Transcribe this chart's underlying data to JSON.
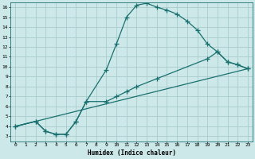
{
  "xlabel": "Humidex (Indice chaleur)",
  "xlim": [
    -0.5,
    23.5
  ],
  "ylim": [
    2.5,
    16.5
  ],
  "xticks": [
    0,
    1,
    2,
    3,
    4,
    5,
    6,
    7,
    8,
    9,
    10,
    11,
    12,
    13,
    14,
    15,
    16,
    17,
    18,
    19,
    20,
    21,
    22,
    23
  ],
  "yticks": [
    3,
    4,
    5,
    6,
    7,
    8,
    9,
    10,
    11,
    12,
    13,
    14,
    15,
    16
  ],
  "bg_color": "#cce8e8",
  "line_color": "#1a7070",
  "grid_color": "#aacccc",
  "line1_x": [
    0,
    2,
    3,
    4,
    5,
    6,
    7,
    9,
    10,
    11,
    12,
    13,
    14,
    15,
    16,
    17,
    18,
    19,
    20,
    21,
    22,
    23
  ],
  "line1_y": [
    4.0,
    4.5,
    3.5,
    3.2,
    3.2,
    4.5,
    6.5,
    9.7,
    12.3,
    15.0,
    16.2,
    16.4,
    16.0,
    15.7,
    15.3,
    14.6,
    13.7,
    12.3,
    11.5,
    10.5,
    10.2,
    9.8
  ],
  "line2_x": [
    0,
    2,
    3,
    4,
    5,
    6,
    7,
    9,
    10,
    11,
    12,
    14,
    19,
    20,
    21,
    22,
    23
  ],
  "line2_y": [
    4.0,
    4.5,
    3.5,
    3.2,
    3.2,
    4.5,
    6.5,
    6.5,
    7.0,
    7.5,
    8.0,
    8.8,
    10.8,
    11.5,
    10.5,
    10.2,
    9.8
  ],
  "line3_x": [
    0,
    23
  ],
  "line3_y": [
    4.0,
    9.8
  ]
}
